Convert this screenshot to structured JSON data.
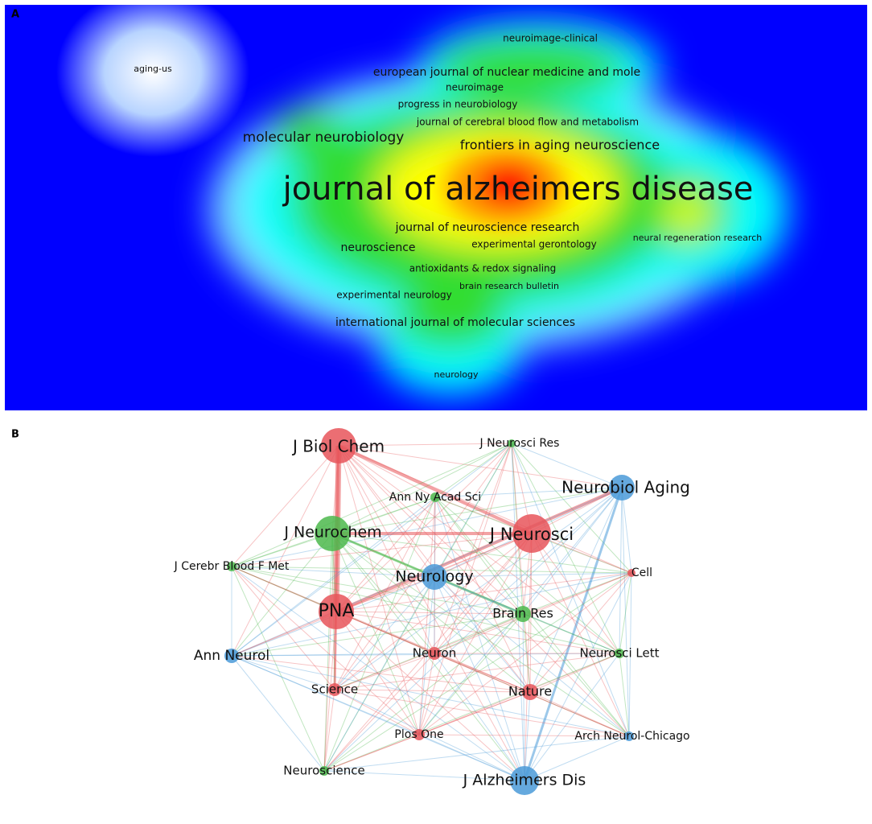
{
  "panel_a": {
    "label": "A",
    "terms": [
      "neuroimage-clinical",
      "aging-us",
      "european journal of nuclear medicine and mole",
      "neuroimage",
      "progress in neurobiology",
      "journal of cerebral blood flow and metabolism",
      "molecular neurobiology",
      "frontiers in aging neuroscience",
      "journal of alzheimers disease",
      "journal of neuroscience research",
      "neuroscience",
      "experimental gerontology",
      "neural regeneration research",
      "antioxidants & redox signaling",
      "brain research bulletin",
      "experimental neurology",
      "international journal of molecular sciences",
      "neurology"
    ]
  },
  "panel_b": {
    "label": "B",
    "nodes": [
      "J Biol Chem",
      "J Neurosci Res",
      "Neurobiol Aging",
      "Ann Ny Acad Sci",
      "J Neurochem",
      "J Neurosci",
      "J Cerebr Blood F Met",
      "Cell",
      "Neurology",
      "PNA",
      "Brain Res",
      "Ann Neurol",
      "Neuron",
      "Neurosci Lett",
      "Science",
      "Nature",
      "Arch Neurol-Chicago",
      "Plos One",
      "Neuroscience",
      "J Alzheimers Dis"
    ]
  }
}
